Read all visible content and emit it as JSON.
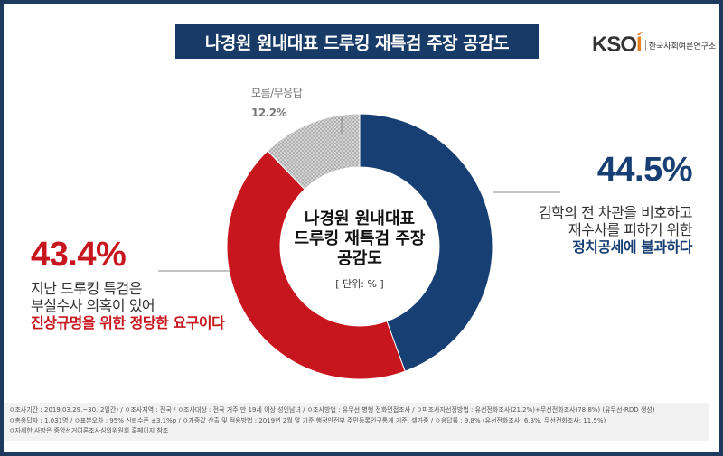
{
  "title": "나경원 원내대표 드루킹 재특검 주장 공감도",
  "logo": {
    "mark": "KSOI",
    "name": "한국사회여론연구소"
  },
  "center": {
    "line1": "나경원 원내대표",
    "line2": "드루킹 재특검 주장",
    "line3": "공감도",
    "unit": "[ 단위: % ]"
  },
  "chart_data": {
    "type": "pie",
    "donut": true,
    "title": "나경원 원내대표 드루킹 재특검 주장 공감도",
    "unit": "%",
    "slices": [
      {
        "label": "김학의 전 차관을 비호하고 재수사를 피하기 위한 정치공세에 불과하다",
        "value": 44.5,
        "color": "#173f73",
        "value_label": "44.5%",
        "text1": "김학의 전 차관을 비호하고",
        "text2": "재수사를 피하기 위한",
        "text3": "정치공세에 불과하다"
      },
      {
        "label": "지난 드루킹 특검은 부실수사 의혹이 있어 진상규명을 위한 정당한 요구이다",
        "value": 43.4,
        "color": "#c8161e",
        "value_label": "43.4%",
        "text1": "지난 드루킹 특검은",
        "text2": "부실수사 의혹이 있어",
        "text3": "진상규명을 위한 정당한 요구이다"
      },
      {
        "label": "모름/무응답",
        "value": 12.2,
        "color": "#c8c8c8",
        "value_label": "12.2%"
      }
    ]
  },
  "footer": {
    "line1": "ㅇ조사기간 : 2019.03.29.~30.(2일간) / ㅇ조사지역 : 전국 / ㅇ조사대상 : 전국 거주 만 19세 이상 성인남녀 / ㅇ조사방법 : 유무선 병행 전화면접조사 / ㅇ피조사자선정방법 : 유선전화조사(21.2%)+무선전화조사(78.8%) (유무선-RDD 생성)",
    "line2": "ㅇ총응답자 : 1,031명 / ㅇ표본오차 : 95% 신뢰수준 ±3.1%p / ㅇ가중값 산출 및 적용방법 : 2019년 2월 말 기준 행정안전부 주민등록인구통계 기준, 셀가중 / ㅇ응답률 : 9.8% (유선전화조사: 6.3%, 무선전화조사: 11.5%)",
    "line3": "ㅇ자세한 사항은 중앙선거여론조사심의위원회 홈페이지 참조"
  }
}
